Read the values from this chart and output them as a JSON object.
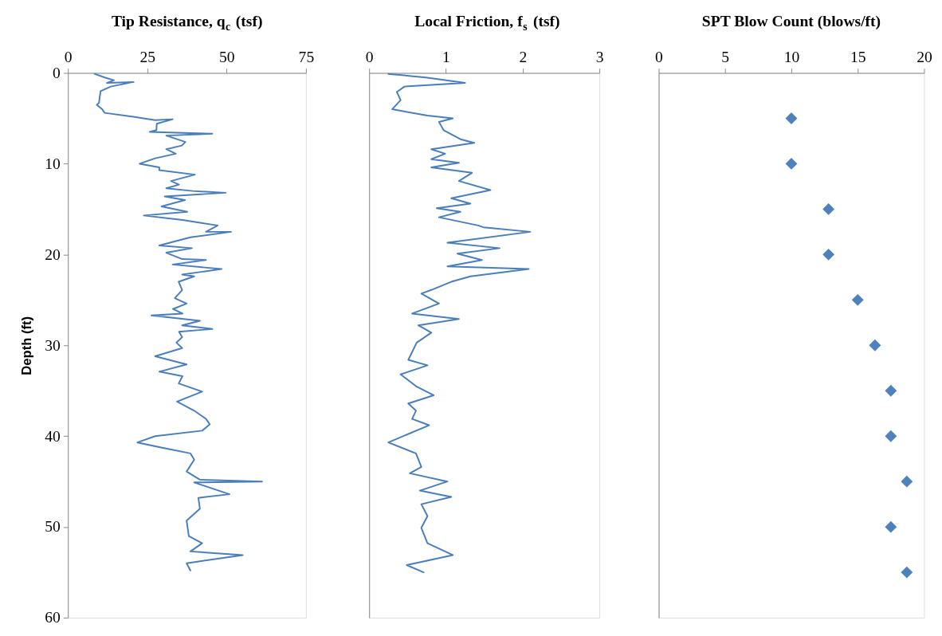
{
  "chart_data": [
    {
      "type": "line",
      "xlabel": "Tip Resistance, q$_{c}$ (tsf)",
      "ylabel": "Depth (ft)",
      "xlim": [
        0,
        75
      ],
      "xticks": [
        0,
        25,
        50,
        75
      ],
      "ylim": [
        60,
        0
      ],
      "yticks": [
        0,
        10,
        20,
        30,
        40,
        50,
        60
      ],
      "grid": false,
      "marker": "none",
      "line_style": "solid",
      "series": [
        {
          "color": "#4a7ebb",
          "x": [
            8.4,
            11.6,
            14.5,
            12.3,
            20.7,
            13.5,
            10.3,
            10.0,
            9.8,
            9.1,
            10.8,
            11.6,
            20.2,
            27.5,
            33.0,
            28.0,
            27.9,
            25.8,
            45.5,
            31.0,
            37.0,
            35.9,
            31.0,
            34.0,
            27.5,
            22.6,
            28.8,
            28.8,
            40.0,
            32.5,
            35.0,
            31.0,
            39.3,
            49.7,
            30.5,
            36.9,
            29.5,
            37.6,
            23.9,
            36.1,
            47.2,
            43.5,
            51.4,
            38.6,
            28.8,
            39.1,
            31.0,
            36.0,
            43.5,
            33.0,
            48.4,
            36.0,
            39.8,
            34.9,
            36.0,
            33.7,
            37.4,
            33.1,
            36.1,
            26.3,
            41.6,
            36.0,
            45.5,
            35.0,
            36.0,
            34.2,
            36.0,
            27.5,
            37.4,
            28.8,
            36.1,
            34.9,
            42.3,
            34.4,
            39.8,
            43.5,
            44.7,
            42.3,
            27.5,
            21.9,
            30.0,
            38.6,
            39.8,
            37.4,
            41.6,
            61.2,
            39.8,
            50.9,
            41.1,
            41.6,
            37.4,
            38.1,
            42.3,
            38.6,
            55.1,
            37.4,
            38.6
          ],
          "values": [
            0.1,
            0.5,
            0.8,
            1.1,
            1.0,
            1.5,
            2.0,
            2.7,
            3.3,
            3.5,
            4.0,
            4.4,
            4.8,
            5.2,
            5.1,
            5.6,
            6.3,
            6.5,
            6.7,
            6.9,
            7.6,
            8.0,
            8.4,
            8.9,
            9.4,
            10.0,
            10.4,
            10.7,
            11.2,
            11.9,
            12.3,
            12.7,
            13.0,
            13.2,
            13.6,
            14.0,
            14.7,
            15.3,
            15.7,
            16.2,
            16.8,
            17.5,
            17.5,
            18.1,
            19.0,
            19.3,
            19.8,
            20.5,
            20.6,
            21.1,
            21.6,
            22.2,
            22.4,
            23.0,
            23.9,
            24.8,
            25.4,
            26.0,
            26.5,
            26.7,
            27.3,
            27.8,
            28.2,
            28.5,
            29.1,
            29.7,
            30.3,
            31.2,
            32.1,
            32.9,
            33.4,
            34.2,
            35.1,
            36.2,
            37.2,
            38.1,
            38.7,
            39.4,
            40.0,
            40.7,
            41.3,
            41.9,
            42.6,
            43.9,
            44.8,
            45.0,
            45.1,
            46.4,
            46.8,
            48.0,
            49.3,
            51.0,
            51.8,
            52.7,
            53.1,
            54.0,
            54.8
          ]
        }
      ]
    },
    {
      "type": "line",
      "xlabel": "Local Friction, f$_{s}$ (tsf)",
      "xlim": [
        0,
        3
      ],
      "xticks": [
        0,
        1,
        2,
        3
      ],
      "ylim": [
        60,
        0
      ],
      "yticks": [
        0,
        10,
        20,
        30,
        40,
        50,
        60
      ],
      "tick_labels": "x",
      "grid": false,
      "marker": "none",
      "line_style": "solid",
      "series": [
        {
          "color": "#4a7ebb",
          "x": [
            0.25,
            0.74,
            1.25,
            0.46,
            0.36,
            0.41,
            0.3,
            0.76,
            1.09,
            0.91,
            0.97,
            1.19,
            1.37,
            0.81,
            0.99,
            0.81,
            1.17,
            0.81,
            1.34,
            1.17,
            1.58,
            1.07,
            1.32,
            0.88,
            1.19,
            0.91,
            1.42,
            1.49,
            2.1,
            1.02,
            1.7,
            1.15,
            1.47,
            1.02,
            2.08,
            1.32,
            1.07,
            0.81,
            0.68,
            0.91,
            0.56,
            1.17,
            0.64,
            0.81,
            0.62,
            0.51,
            0.76,
            0.41,
            0.61,
            0.84,
            0.51,
            0.61,
            0.56,
            0.78,
            0.25,
            0.61,
            0.68,
            0.53,
            1.02,
            0.66,
            1.07,
            0.68,
            0.76,
            0.68,
            0.76,
            1.09,
            0.49,
            0.71
          ],
          "values": [
            0.1,
            0.5,
            1.1,
            1.5,
            2.1,
            3.0,
            4.0,
            4.7,
            5.0,
            5.4,
            6.3,
            7.3,
            7.7,
            8.4,
            8.9,
            9.5,
            9.9,
            10.4,
            11.0,
            11.9,
            12.9,
            13.8,
            14.4,
            14.9,
            15.3,
            15.9,
            16.8,
            17.0,
            17.5,
            18.7,
            19.3,
            19.9,
            20.6,
            21.3,
            21.6,
            22.4,
            23.0,
            23.9,
            24.3,
            25.4,
            26.5,
            27.1,
            27.8,
            28.6,
            29.7,
            31.6,
            32.2,
            33.2,
            34.5,
            35.5,
            36.4,
            37.2,
            38.1,
            38.8,
            40.7,
            41.9,
            43.4,
            44.1,
            45.0,
            46.0,
            46.7,
            47.5,
            48.8,
            50.1,
            51.8,
            53.1,
            54.2,
            55.0
          ]
        }
      ]
    },
    {
      "type": "scatter",
      "xlabel": "SPT Blow Count (blows/ft)",
      "xlim": [
        0,
        20
      ],
      "xticks": [
        0,
        5,
        10,
        15,
        20
      ],
      "ylim": [
        60,
        0
      ],
      "yticks": [
        0,
        10,
        20,
        30,
        40,
        50,
        60
      ],
      "tick_labels": "x",
      "grid": false,
      "marker": "diamond",
      "series": [
        {
          "color": "#4f81bd",
          "x": [
            10,
            10,
            12.8,
            12.8,
            15,
            16.3,
            17.5,
            17.5,
            18.7,
            17.5,
            18.7
          ],
          "values": [
            5,
            10,
            15,
            20,
            25,
            30,
            35,
            40,
            45,
            50,
            55
          ]
        }
      ]
    }
  ]
}
